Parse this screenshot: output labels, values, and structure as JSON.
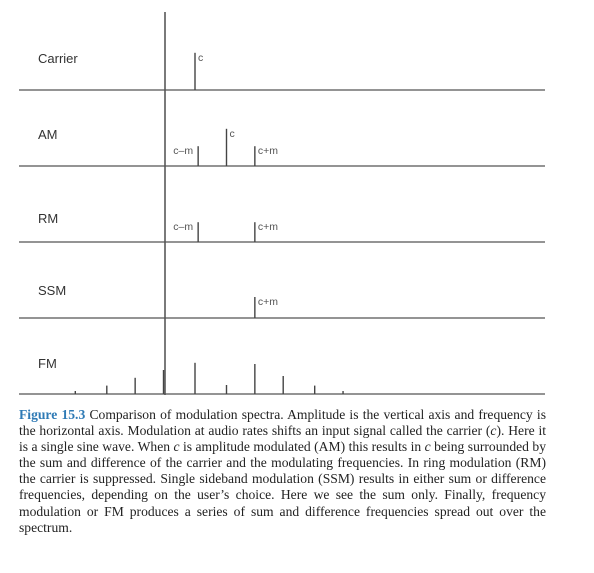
{
  "figure": {
    "rows": [
      {
        "id": "carrier",
        "label": "Carrier",
        "lines": [
          {
            "freq": 0,
            "amp": 0.62,
            "label": "c",
            "label_side": "right"
          }
        ]
      },
      {
        "id": "am",
        "label": "AM",
        "lines": [
          {
            "freq": 1,
            "amp": 0.62,
            "label": "c",
            "label_side": "right"
          },
          {
            "freq": 0.1,
            "amp": 0.33,
            "label": "c–m",
            "label_side": "left"
          },
          {
            "freq": 1.9,
            "amp": 0.33,
            "label": "c+m",
            "label_side": "right"
          }
        ]
      },
      {
        "id": "rm",
        "label": "RM",
        "lines": [
          {
            "freq": 0.1,
            "amp": 0.33,
            "label": "c–m",
            "label_side": "left"
          },
          {
            "freq": 1.9,
            "amp": 0.33,
            "label": "c+m",
            "label_side": "right"
          }
        ]
      },
      {
        "id": "ssm",
        "label": "SSM",
        "lines": [
          {
            "freq": 1.9,
            "amp": 0.35,
            "label": "c+m",
            "label_side": "right"
          }
        ]
      },
      {
        "id": "fm",
        "label": "FM",
        "lines": [
          {
            "freq": -3.8,
            "amp": 0.05
          },
          {
            "freq": -2.8,
            "amp": 0.14
          },
          {
            "freq": -1.9,
            "amp": 0.27
          },
          {
            "freq": -1,
            "amp": 0.4
          },
          {
            "freq": 0,
            "amp": 0.52
          },
          {
            "freq": 1,
            "amp": 0.15
          },
          {
            "freq": 1.9,
            "amp": 0.5
          },
          {
            "freq": 2.8,
            "amp": 0.3
          },
          {
            "freq": 3.8,
            "amp": 0.14
          },
          {
            "freq": 4.7,
            "amp": 0.05
          }
        ]
      }
    ]
  },
  "caption": {
    "figure_label": "Figure 15.3",
    "runs": [
      {
        "text": " Comparison of modulation spectra. Amplitude is the vertical axis and frequency is the horizontal axis. Modulation at audio rates shifts an input signal called the carrier (",
        "italic": false
      },
      {
        "text": "c",
        "italic": true
      },
      {
        "text": "). Here it is a single sine wave. When ",
        "italic": false
      },
      {
        "text": "c",
        "italic": true
      },
      {
        "text": " is amplitude modulated (AM) this results in ",
        "italic": false
      },
      {
        "text": "c",
        "italic": true
      },
      {
        "text": " being surrounded by the sum and difference of the carrier and the modulating frequencies. In ring modulation (RM) the carrier is suppressed. Single sideband modulation (SSM) results in either sum or difference frequencies, depending on the user’s choice. Here we see the sum only. Finally, frequency modulation or FM produces a series of sum and difference frequencies spread out over the spectrum.",
        "italic": false
      }
    ]
  },
  "colors": {
    "axis": "#333333",
    "row_line": "#555555",
    "spectral_line": "#444444",
    "label_text": "#333333",
    "tick_label_text": "#555555",
    "caption_text": "#222222",
    "figure_label": "#2e7ab5"
  }
}
